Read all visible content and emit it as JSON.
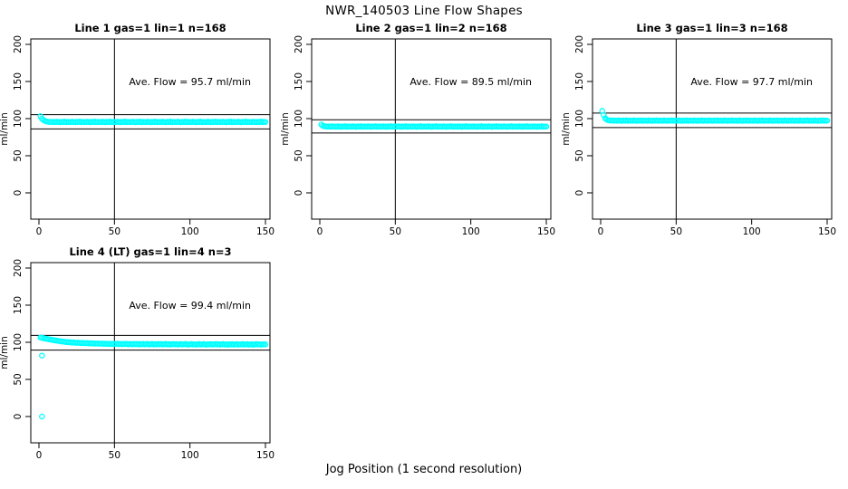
{
  "figure_title": "NWR_140503  Line Flow Shapes",
  "xlabel": "Jog Position (1 second resolution)",
  "colors": {
    "points": "#00FFFF",
    "axis": "#000000",
    "background": "#FFFFFF"
  },
  "axes": {
    "x_ticks": [
      0,
      50,
      100,
      150
    ],
    "y_ticks": [
      0,
      50,
      100,
      150,
      200
    ],
    "ylabel": "ml/min",
    "xlim": [
      0,
      150
    ],
    "ylim": [
      0,
      200
    ],
    "grid": false
  },
  "chart_data": [
    {
      "type": "scatter",
      "marker": "open-circle",
      "color": "#00FFFF",
      "title": "Line 1 gas=1 lin=1 n=168",
      "annotation": "Ave. Flow =  95.7  ml/min",
      "ave_flow": 95.7,
      "vline": 50,
      "ref_lines": {
        "upper": 105.3,
        "lower": 86.1
      },
      "x_start": 1,
      "x_step": 1,
      "y": [
        103.2,
        99.8,
        98.0,
        96.8,
        96.2,
        95.8,
        95.5,
        95.7,
        95.4,
        95.6,
        95.3,
        95.8,
        95.5,
        95.1,
        95.7,
        95.4,
        95.9,
        95.2,
        95.6,
        95.5,
        95.3,
        95.8,
        95.5,
        95.1,
        95.7,
        95.4,
        95.9,
        95.2,
        95.6,
        95.5,
        95.3,
        95.8,
        95.5,
        95.1,
        95.7,
        95.4,
        95.9,
        95.2,
        95.6,
        95.5,
        95.3,
        95.8,
        95.5,
        95.1,
        95.7,
        95.4,
        95.9,
        95.2,
        95.6,
        95.5,
        95.3,
        95.8,
        95.5,
        95.1,
        95.7,
        95.4,
        95.9,
        95.2,
        95.6,
        95.5,
        95.3,
        95.8,
        95.5,
        95.1,
        95.7,
        95.4,
        95.9,
        95.2,
        95.6,
        95.5,
        95.3,
        95.8,
        95.5,
        95.1,
        95.7,
        95.4,
        95.9,
        95.2,
        95.6,
        95.5,
        95.3,
        95.8,
        95.5,
        95.1,
        95.7,
        95.4,
        95.9,
        95.2,
        95.6,
        95.5,
        95.3,
        95.8,
        95.5,
        95.1,
        95.7,
        95.4,
        95.9,
        95.2,
        95.6,
        95.5,
        95.3,
        95.8,
        95.5,
        95.1,
        95.7,
        95.4,
        95.9,
        95.2,
        95.6,
        95.5,
        95.3,
        95.8,
        95.5,
        95.1,
        95.7,
        95.4,
        95.9,
        95.2,
        95.6,
        95.5,
        95.3,
        95.8,
        95.5,
        95.1,
        95.7,
        95.4,
        95.9,
        95.2,
        95.6,
        95.5,
        95.3,
        95.8,
        95.5,
        95.1,
        95.7,
        95.4,
        95.9,
        95.2,
        95.6,
        95.5,
        95.3,
        95.8,
        95.5,
        95.1,
        95.7,
        95.4,
        95.9,
        95.2,
        95.6,
        95.5
      ],
      "outliers": []
    },
    {
      "type": "scatter",
      "marker": "open-circle",
      "color": "#00FFFF",
      "title": "Line 2 gas=1 lin=2 n=168",
      "annotation": "Ave. Flow =  89.5  ml/min",
      "ave_flow": 89.5,
      "vline": 50,
      "ref_lines": {
        "upper": 98.5,
        "lower": 80.6
      },
      "x_start": 1,
      "x_step": 1,
      "y": [
        92.0,
        90.3,
        89.7,
        89.4,
        89.2,
        89.5,
        89.1,
        89.6,
        89.3,
        89.4,
        89.1,
        89.6,
        89.3,
        88.9,
        89.5,
        89.2,
        89.7,
        89.0,
        89.4,
        89.3,
        89.1,
        89.6,
        89.3,
        88.9,
        89.5,
        89.2,
        89.7,
        89.0,
        89.4,
        89.3,
        89.1,
        89.6,
        89.3,
        88.9,
        89.5,
        89.2,
        89.7,
        89.0,
        89.4,
        89.3,
        89.1,
        89.6,
        89.3,
        88.9,
        89.5,
        89.2,
        89.7,
        89.0,
        89.4,
        89.3,
        89.1,
        89.6,
        89.3,
        88.9,
        89.5,
        89.2,
        89.7,
        89.0,
        89.4,
        89.3,
        89.1,
        89.6,
        89.3,
        88.9,
        89.5,
        89.2,
        89.7,
        89.0,
        89.4,
        89.3,
        89.1,
        89.6,
        89.3,
        88.9,
        89.5,
        89.2,
        89.7,
        89.0,
        89.4,
        89.3,
        89.1,
        89.6,
        89.3,
        88.9,
        89.5,
        89.2,
        89.7,
        89.0,
        89.4,
        89.3,
        89.1,
        89.6,
        89.3,
        88.9,
        89.5,
        89.2,
        89.7,
        89.0,
        89.4,
        89.3,
        89.1,
        89.6,
        89.3,
        88.9,
        89.5,
        89.2,
        89.7,
        89.0,
        89.4,
        89.3,
        89.1,
        89.6,
        89.3,
        88.9,
        89.5,
        89.2,
        89.7,
        89.0,
        89.4,
        89.3,
        89.1,
        89.6,
        89.3,
        88.9,
        89.5,
        89.2,
        89.7,
        89.0,
        89.4,
        89.3,
        89.1,
        89.6,
        89.3,
        88.9,
        89.5,
        89.2,
        89.7,
        89.0,
        89.4,
        89.3,
        89.1,
        89.6,
        89.3,
        88.9,
        89.5,
        89.2,
        89.7,
        89.0,
        89.4,
        89.3
      ],
      "outliers": []
    },
    {
      "type": "scatter",
      "marker": "open-circle",
      "color": "#00FFFF",
      "title": "Line 3 gas=1 lin=3 n=168",
      "annotation": "Ave. Flow =  97.7  ml/min",
      "ave_flow": 97.7,
      "vline": 50,
      "ref_lines": {
        "upper": 107.5,
        "lower": 87.9
      },
      "x_start": 1,
      "x_step": 1,
      "y": [
        110.5,
        104.8,
        100.5,
        98.6,
        97.9,
        97.6,
        97.3,
        97.5,
        97.2,
        97.4,
        97.1,
        97.6,
        97.3,
        96.9,
        97.5,
        97.2,
        97.7,
        97.0,
        97.4,
        97.3,
        97.1,
        97.6,
        97.3,
        96.9,
        97.5,
        97.2,
        97.7,
        97.0,
        97.4,
        97.3,
        97.1,
        97.6,
        97.3,
        96.9,
        97.5,
        97.2,
        97.7,
        97.0,
        97.4,
        97.3,
        97.1,
        97.6,
        97.3,
        96.9,
        97.5,
        97.2,
        97.7,
        97.0,
        97.4,
        97.3,
        97.1,
        97.6,
        97.3,
        96.9,
        97.5,
        97.2,
        97.7,
        97.0,
        97.4,
        97.3,
        97.1,
        97.6,
        97.3,
        96.9,
        97.5,
        97.2,
        97.7,
        97.0,
        97.4,
        97.3,
        97.1,
        97.6,
        97.3,
        96.9,
        97.5,
        97.2,
        97.7,
        97.0,
        97.4,
        97.3,
        97.1,
        97.6,
        97.3,
        96.9,
        97.5,
        97.2,
        97.7,
        97.0,
        97.4,
        97.3,
        97.1,
        97.6,
        97.3,
        96.9,
        97.5,
        97.2,
        97.7,
        97.0,
        97.4,
        97.3,
        97.1,
        97.6,
        97.3,
        96.9,
        97.5,
        97.2,
        97.7,
        97.0,
        97.4,
        97.3,
        97.1,
        97.6,
        97.3,
        96.9,
        97.5,
        97.2,
        97.7,
        97.0,
        97.4,
        97.3,
        97.1,
        97.6,
        97.3,
        96.9,
        97.5,
        97.2,
        97.7,
        97.0,
        97.4,
        97.3,
        97.1,
        97.6,
        97.3,
        96.9,
        97.5,
        97.2,
        97.7,
        97.0,
        97.4,
        97.3,
        97.1,
        97.6,
        97.3,
        96.9,
        97.5,
        97.2,
        97.7,
        97.0,
        97.4,
        97.3
      ],
      "outliers": []
    },
    {
      "type": "scatter",
      "marker": "open-circle",
      "color": "#00FFFF",
      "title": "Line 4 (LT) gas=1 lin=4 n=3",
      "annotation": "Ave. Flow =  99.4  ml/min",
      "ave_flow": 99.4,
      "vline": 50,
      "ref_lines": {
        "upper": 109.3,
        "lower": 89.5
      },
      "x_start": 1,
      "x_step": 1,
      "y": [
        106.4,
        105.9,
        105.6,
        105.1,
        104.7,
        104.3,
        103.9,
        103.5,
        103.2,
        102.8,
        102.5,
        102.1,
        101.8,
        101.5,
        101.2,
        100.9,
        100.7,
        100.4,
        100.2,
        100.0,
        99.8,
        99.6,
        99.9,
        99.4,
        99.2,
        99.5,
        99.1,
        98.9,
        99.2,
        98.8,
        98.7,
        99.0,
        98.5,
        98.8,
        98.4,
        98.6,
        98.2,
        98.5,
        98.1,
        98.3,
        98.0,
        98.3,
        97.9,
        98.2,
        97.8,
        98.0,
        97.7,
        98.0,
        97.6,
        97.9,
        97.8,
        98.1,
        97.5,
        97.9,
        97.4,
        97.8,
        97.6,
        98.0,
        97.3,
        97.7,
        97.6,
        97.2,
        97.9,
        97.4,
        97.8,
        97.1,
        97.6,
        97.3,
        97.8,
        97.2,
        97.5,
        97.9,
        97.1,
        97.4,
        97.8,
        97.0,
        97.5,
        97.2,
        97.7,
        97.3,
        97.6,
        97.0,
        97.4,
        97.8,
        97.1,
        97.5,
        96.9,
        97.4,
        97.7,
        97.2,
        97.5,
        96.9,
        97.3,
        97.7,
        97.0,
        97.4,
        97.8,
        97.1,
        96.8,
        97.3,
        97.6,
        97.0,
        97.4,
        96.8,
        97.2,
        97.6,
        96.9,
        97.3,
        97.7,
        97.1,
        96.8,
        97.4,
        97.0,
        97.5,
        96.9,
        97.3,
        97.6,
        97.0,
        97.4,
        96.8,
        97.2,
        97.6,
        96.9,
        97.3,
        96.7,
        97.4,
        97.1,
        97.5,
        96.8,
        97.2,
        97.5,
        96.8,
        97.3,
        97.0,
        97.6,
        96.9,
        97.2,
        97.5,
        96.8,
        97.1,
        97.4,
        96.7,
        97.2,
        97.6,
        96.9,
        97.3,
        96.8,
        97.4,
        97.0,
        97.2
      ],
      "outliers": [
        [
          2,
          82
        ],
        [
          2,
          0
        ]
      ]
    }
  ]
}
